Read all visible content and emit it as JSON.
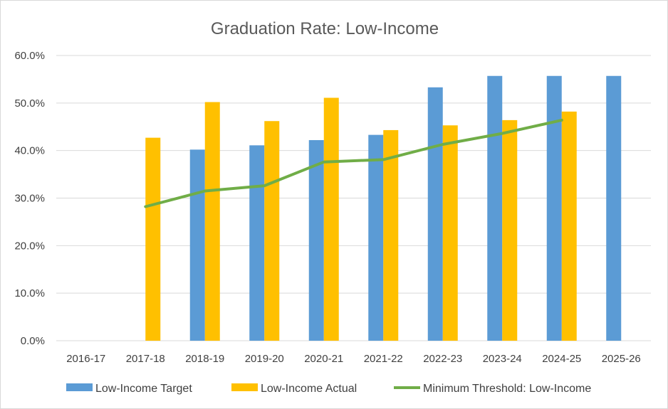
{
  "chart_data": {
    "type": "bar",
    "title": "Graduation Rate: Low-Income",
    "categories": [
      "2016-17",
      "2017-18",
      "2018-19",
      "2019-20",
      "2020-21",
      "2021-22",
      "2022-23",
      "2023-24",
      "2024-25",
      "2025-26"
    ],
    "ylim": [
      0,
      60
    ],
    "yticks": [
      0,
      10,
      20,
      30,
      40,
      50,
      60
    ],
    "ytick_labels": [
      "0.0%",
      "10.0%",
      "20.0%",
      "30.0%",
      "40.0%",
      "50.0%",
      "60.0%"
    ],
    "grid": true,
    "legend_position": "bottom",
    "series": [
      {
        "name": "Low-Income Target",
        "type": "bar",
        "color": "#5b9bd5",
        "values": [
          null,
          null,
          40.2,
          41.1,
          42.2,
          43.3,
          53.3,
          55.7,
          55.7,
          55.7
        ]
      },
      {
        "name": "Low-Income Actual",
        "type": "bar",
        "color": "#ffc000",
        "values": [
          null,
          42.7,
          50.2,
          46.2,
          51.1,
          44.3,
          45.3,
          46.4,
          48.2,
          null
        ]
      },
      {
        "name": "Minimum Threshold: Low-Income",
        "type": "line",
        "color": "#70ad47",
        "values": [
          null,
          28.2,
          31.5,
          32.6,
          37.6,
          38.1,
          41.3,
          43.6,
          46.4,
          null
        ]
      }
    ]
  }
}
